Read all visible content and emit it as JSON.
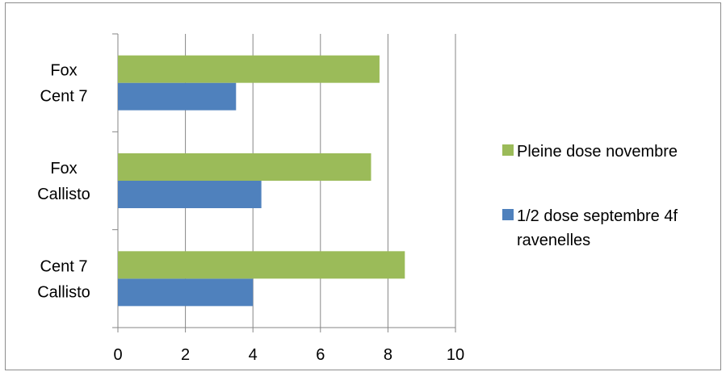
{
  "chart_data": {
    "type": "bar",
    "orientation": "horizontal",
    "categories": [
      [
        "Cent 7",
        "Callisto"
      ],
      [
        "Fox",
        "Callisto"
      ],
      [
        "Fox",
        "Cent 7"
      ]
    ],
    "series": [
      {
        "name": "1/2 dose septembre 4f ravenelles",
        "name_lines": [
          "1/2 dose septembre 4f",
          "ravenelles"
        ],
        "color": "#4f81bd",
        "values": [
          4.0,
          4.25,
          3.5
        ]
      },
      {
        "name": "Pleine dose novembre",
        "name_lines": [
          "Pleine dose novembre"
        ],
        "color": "#9bbb59",
        "values": [
          8.5,
          7.5,
          7.75
        ]
      }
    ],
    "xlim": [
      0,
      10
    ],
    "xticks": [
      0,
      2,
      4,
      6,
      8,
      10
    ],
    "grid": "vertical",
    "legend": "right",
    "legend_order": [
      "Pleine dose novembre",
      "1/2 dose septembre 4f ravenelles"
    ],
    "title": "",
    "xlabel": "",
    "ylabel": ""
  }
}
